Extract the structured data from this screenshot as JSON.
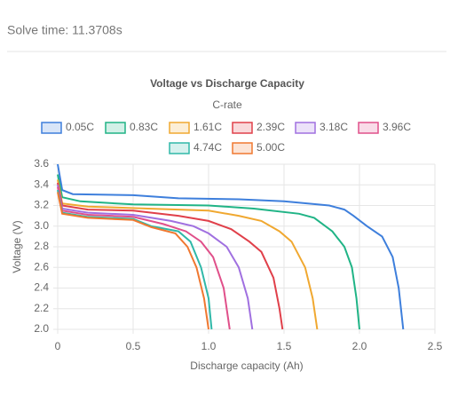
{
  "solve_time": "Solve time: 11.3708s",
  "chart_data": {
    "type": "line",
    "title": "Voltage vs Discharge Capacity",
    "legend_title": "C-rate",
    "x_label": "Discharge capacity (Ah)",
    "y_label": "Voltage (V)",
    "grid": true,
    "xlim": [
      0,
      2.5
    ],
    "xticks": [
      0,
      0.5,
      {
        "value": 1,
        "label": "1.0"
      },
      1.5,
      {
        "value": 2,
        "label": "2.0"
      },
      2.5
    ],
    "ylim": [
      2,
      3.6
    ],
    "yticks": [
      {
        "value": 2,
        "label": "2.0"
      },
      2.2,
      2.4,
      2.6,
      2.8,
      {
        "value": 3,
        "label": "3.0"
      },
      3.2,
      3.4,
      3.6
    ],
    "series": [
      {
        "name": "0.05C",
        "color": "#3e7fdc",
        "x": [
          0,
          0.03,
          0.1,
          0.5,
          0.8,
          1.2,
          1.5,
          1.8,
          1.9,
          1.96,
          2.05,
          2.15,
          2.22,
          2.26,
          2.29
        ],
        "values": [
          3.6,
          3.35,
          3.31,
          3.3,
          3.27,
          3.26,
          3.24,
          3.2,
          3.16,
          3.1,
          3.0,
          2.9,
          2.7,
          2.4,
          2.0
        ]
      },
      {
        "name": "0.83C",
        "color": "#20b486",
        "x": [
          0,
          0.03,
          0.15,
          0.5,
          1.0,
          1.3,
          1.6,
          1.7,
          1.82,
          1.9,
          1.95,
          1.98,
          2.0
        ],
        "values": [
          3.5,
          3.28,
          3.24,
          3.21,
          3.2,
          3.17,
          3.12,
          3.08,
          2.95,
          2.8,
          2.6,
          2.3,
          2.0
        ]
      },
      {
        "name": "1.61C",
        "color": "#f0a830",
        "x": [
          0,
          0.03,
          0.2,
          0.6,
          1.0,
          1.2,
          1.35,
          1.47,
          1.55,
          1.64,
          1.69,
          1.72
        ],
        "values": [
          3.45,
          3.22,
          3.19,
          3.17,
          3.15,
          3.1,
          3.05,
          2.95,
          2.85,
          2.6,
          2.3,
          2.0
        ]
      },
      {
        "name": "2.39C",
        "color": "#e0404a",
        "x": [
          0,
          0.03,
          0.2,
          0.5,
          0.8,
          1.0,
          1.15,
          1.27,
          1.35,
          1.43,
          1.47,
          1.49
        ],
        "values": [
          3.42,
          3.2,
          3.16,
          3.15,
          3.1,
          3.05,
          2.97,
          2.85,
          2.75,
          2.5,
          2.2,
          2.0
        ]
      },
      {
        "name": "3.18C",
        "color": "#a070e0",
        "x": [
          0,
          0.03,
          0.2,
          0.5,
          0.75,
          0.9,
          1.0,
          1.12,
          1.2,
          1.26,
          1.29
        ],
        "values": [
          3.4,
          3.17,
          3.13,
          3.11,
          3.05,
          3.0,
          2.93,
          2.8,
          2.6,
          2.3,
          2.0
        ]
      },
      {
        "name": "3.96C",
        "color": "#e0508a",
        "x": [
          0,
          0.03,
          0.2,
          0.5,
          0.7,
          0.85,
          0.95,
          1.03,
          1.1,
          1.14
        ],
        "values": [
          3.38,
          3.15,
          3.11,
          3.09,
          3.02,
          2.95,
          2.85,
          2.7,
          2.4,
          2.0
        ]
      },
      {
        "name": "4.74C",
        "color": "#30b8a8",
        "x": [
          0,
          0.03,
          0.2,
          0.5,
          0.62,
          0.8,
          0.88,
          0.95,
          1.0,
          1.02
        ],
        "values": [
          3.35,
          3.13,
          3.09,
          3.07,
          3.0,
          2.95,
          2.85,
          2.6,
          2.3,
          2.0
        ]
      },
      {
        "name": "5.00C",
        "color": "#f07830",
        "x": [
          0,
          0.03,
          0.2,
          0.5,
          0.62,
          0.78,
          0.86,
          0.92,
          0.97,
          1.0
        ],
        "values": [
          3.33,
          3.12,
          3.08,
          3.06,
          2.99,
          2.93,
          2.8,
          2.6,
          2.3,
          2.0
        ]
      }
    ]
  }
}
